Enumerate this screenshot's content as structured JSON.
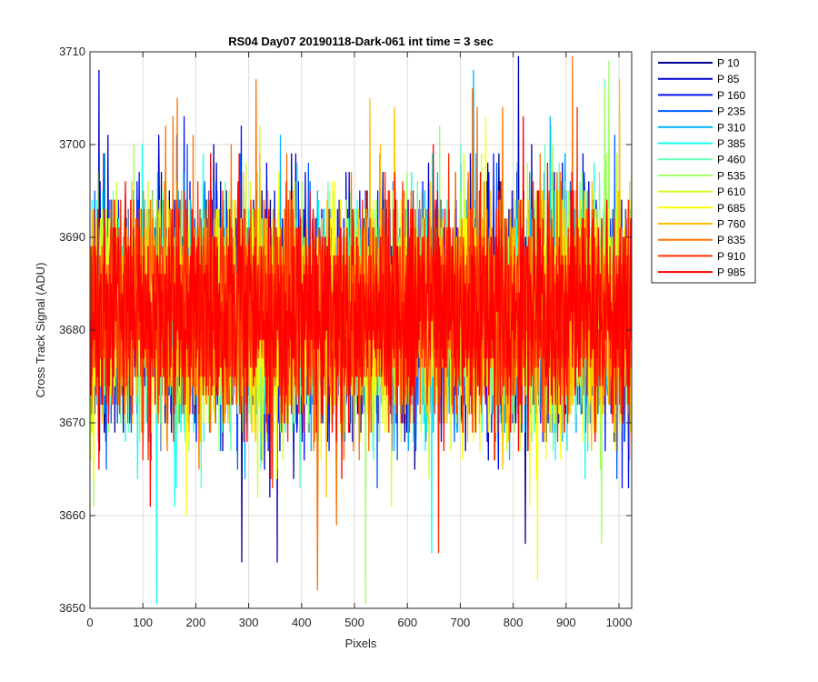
{
  "chart_data": {
    "type": "line",
    "title": "RS04 Day07 20190118-Dark-061 int time = 3 sec",
    "xlabel": "Pixels",
    "ylabel": "Cross Track Signal (ADU)",
    "xlim": [
      0,
      1024
    ],
    "ylim": [
      3650,
      3710
    ],
    "x_ticks": [
      0,
      100,
      200,
      300,
      400,
      500,
      600,
      700,
      800,
      900,
      1000
    ],
    "y_ticks": [
      3650,
      3660,
      3670,
      3680,
      3690,
      3700,
      3710
    ],
    "grid": true,
    "legend_position": "outside-top-right",
    "x": {
      "start": 1,
      "end": 1024,
      "step": 1
    },
    "series": [
      {
        "name": "P 10",
        "color": "#00008f",
        "mean": 3682,
        "spread": 7.2,
        "seed": 11
      },
      {
        "name": "P 85",
        "color": "#0000cf",
        "mean": 3682,
        "spread": 7.2,
        "seed": 23
      },
      {
        "name": "P 160",
        "color": "#0010ff",
        "mean": 3682,
        "spread": 7.2,
        "seed": 37
      },
      {
        "name": "P 235",
        "color": "#0060ff",
        "mean": 3682,
        "spread": 7.2,
        "seed": 41
      },
      {
        "name": "P 310",
        "color": "#00b0ff",
        "mean": 3682,
        "spread": 7.2,
        "seed": 53
      },
      {
        "name": "P 385",
        "color": "#10ffef",
        "mean": 3682,
        "spread": 7.2,
        "seed": 67
      },
      {
        "name": "P 460",
        "color": "#60ffb0",
        "mean": 3682,
        "spread": 7.2,
        "seed": 71
      },
      {
        "name": "P 535",
        "color": "#9fff60",
        "mean": 3682,
        "spread": 7.2,
        "seed": 83
      },
      {
        "name": "P 610",
        "color": "#cfff20",
        "mean": 3682,
        "spread": 7.2,
        "seed": 97
      },
      {
        "name": "P 685",
        "color": "#ffff00",
        "mean": 3682,
        "spread": 7.2,
        "seed": 101
      },
      {
        "name": "P 760",
        "color": "#ffbf00",
        "mean": 3682,
        "spread": 7.2,
        "seed": 113
      },
      {
        "name": "P 835",
        "color": "#ff7000",
        "mean": 3682,
        "spread": 7.2,
        "seed": 127
      },
      {
        "name": "P 910",
        "color": "#ff3000",
        "mean": 3682,
        "spread": 7.2,
        "seed": 131
      },
      {
        "name": "P 985",
        "color": "#ff0000",
        "mean": 3682,
        "spread": 7.2,
        "seed": 149
      }
    ]
  }
}
